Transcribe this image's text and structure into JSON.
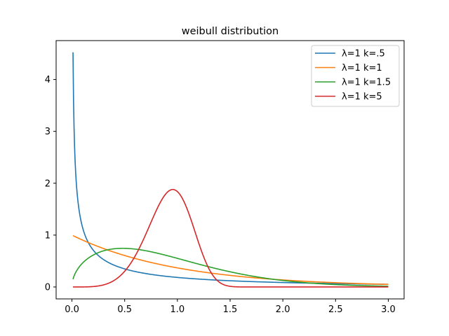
{
  "chart_data": {
    "type": "line",
    "title": "weibull distribution",
    "xlabel": "",
    "ylabel": "",
    "xlim": [
      -0.15,
      3.15
    ],
    "ylim": [
      -0.23,
      4.75
    ],
    "xticks": [
      0.0,
      0.5,
      1.0,
      1.5,
      2.0,
      2.5,
      3.0
    ],
    "xtick_labels": [
      "0.0",
      "0.5",
      "1.0",
      "1.5",
      "2.0",
      "2.5",
      "3.0"
    ],
    "yticks": [
      0,
      1,
      2,
      3,
      4
    ],
    "ytick_labels": [
      "0",
      "1",
      "2",
      "3",
      "4"
    ],
    "grid": false,
    "legend_position": "top-right",
    "x_range": [
      0.01,
      3.0
    ],
    "series": [
      {
        "name": "λ=1 k=.5",
        "color": "#1f77b4",
        "lambda": 1,
        "k": 0.5
      },
      {
        "name": "λ=1 k=1",
        "color": "#ff7f0e",
        "lambda": 1,
        "k": 1
      },
      {
        "name": "λ=1 k=1.5",
        "color": "#2ca02c",
        "lambda": 1,
        "k": 1.5
      },
      {
        "name": "λ=1 k=5",
        "color": "#d62728",
        "lambda": 1,
        "k": 5
      }
    ]
  }
}
